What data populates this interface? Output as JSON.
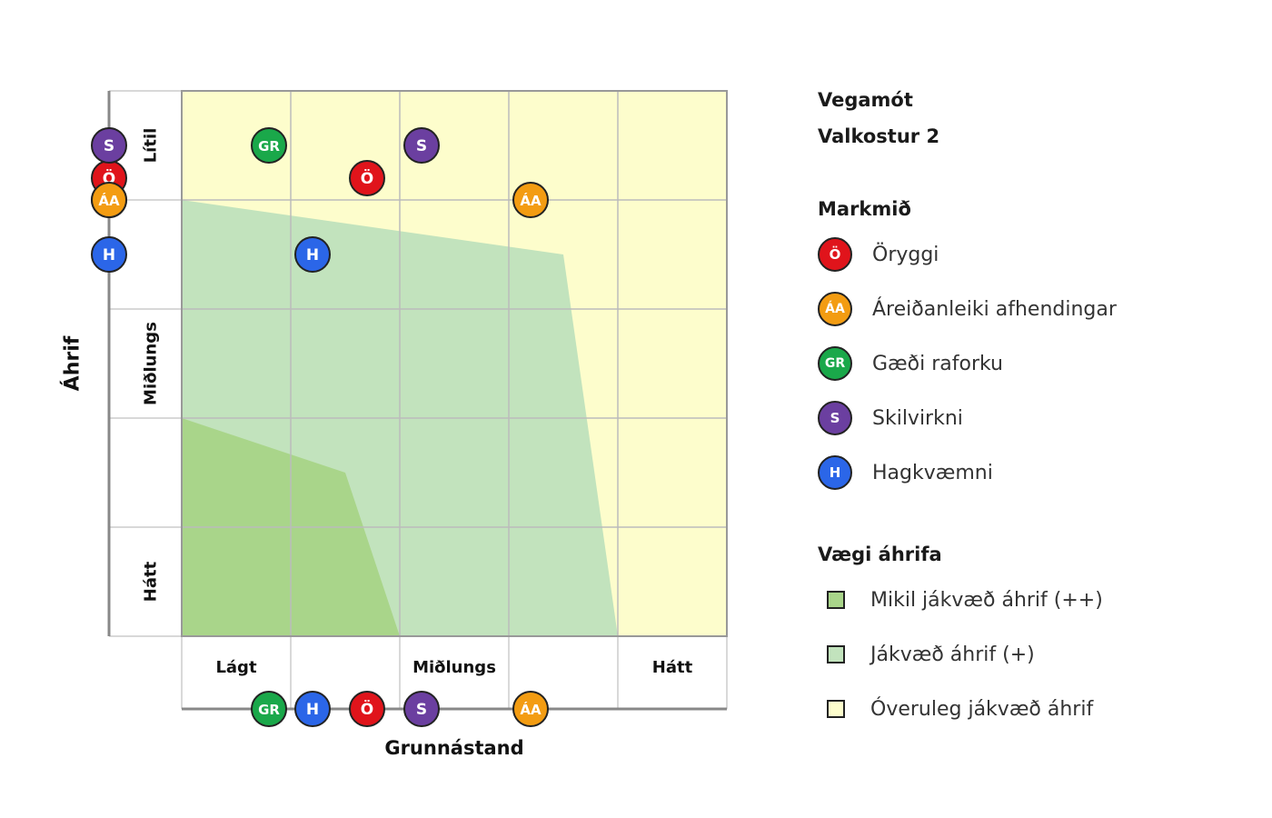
{
  "colors": {
    "safety": "#e0141b",
    "reliability": "#f39c12",
    "quality": "#1aa84a",
    "efficiency": "#6b3fa0",
    "economy": "#2b66e8",
    "zone_high": "#a9d58a",
    "zone_positive": "#c2e3bd",
    "zone_insignificant": "#fdfdcc"
  },
  "chart_data": {
    "type": "scatter",
    "grid": "5x5",
    "y_axis": {
      "label": "Áhrif",
      "tick_labels": [
        "Lítil",
        "Miðlungs",
        "Hátt"
      ]
    },
    "x_axis": {
      "label": "Grunnástand",
      "tick_labels": [
        "Lágt",
        "Miðlungs",
        "Hátt"
      ]
    },
    "zones": [
      {
        "name": "Óveruleg jákvæð áhrif",
        "color_key": "zone_insignificant"
      },
      {
        "name": "Jákvæð áhrif (+)",
        "color_key": "zone_positive"
      },
      {
        "name": "Mikil jákvæð áhrif (++)",
        "color_key": "zone_high"
      }
    ],
    "points": [
      {
        "abbr": "GR",
        "color_key": "quality",
        "x": 0.8,
        "y": 0.5
      },
      {
        "abbr": "S",
        "color_key": "efficiency",
        "x": 2.2,
        "y": 0.5
      },
      {
        "abbr": "Ö",
        "color_key": "safety",
        "x": 1.7,
        "y": 0.8
      },
      {
        "abbr": "ÁA",
        "color_key": "reliability",
        "x": 3.2,
        "y": 1.0
      },
      {
        "abbr": "H",
        "color_key": "economy",
        "x": 1.2,
        "y": 1.5
      }
    ]
  },
  "side_title": {
    "line1": "Vegamót",
    "line2": "Valkostur 2"
  },
  "legend_objectives": {
    "heading": "Markmið",
    "items": [
      {
        "abbr": "Ö",
        "label": "Öryggi",
        "color_key": "safety"
      },
      {
        "abbr": "ÁA",
        "label": "Áreiðanleiki afhendingar",
        "color_key": "reliability"
      },
      {
        "abbr": "GR",
        "label": "Gæði raforku",
        "color_key": "quality"
      },
      {
        "abbr": "S",
        "label": "Skilvirkni",
        "color_key": "efficiency"
      },
      {
        "abbr": "H",
        "label": "Hagkvæmni",
        "color_key": "economy"
      }
    ]
  },
  "legend_weight": {
    "heading": "Vægi áhrifa",
    "items": [
      {
        "label": "Mikil jákvæð áhrif (++)",
        "color_key": "zone_high"
      },
      {
        "label": "Jákvæð áhrif (+)",
        "color_key": "zone_positive"
      },
      {
        "label": "Óveruleg jákvæð áhrif",
        "color_key": "zone_insignificant"
      }
    ]
  }
}
